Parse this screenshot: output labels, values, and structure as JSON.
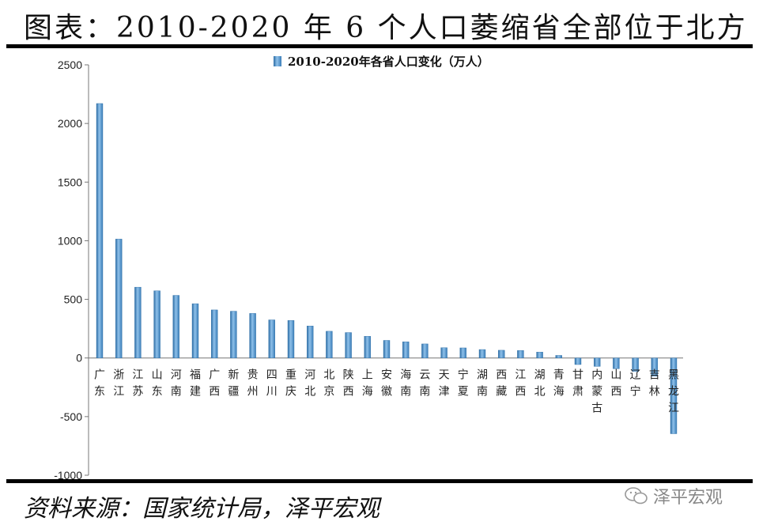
{
  "header": {
    "title": "图表：2010-2020 年 6 个人口萎缩省全部位于北方"
  },
  "footer": {
    "source": "资料来源：国家统计局，泽平宏观",
    "watermark": "泽平宏观"
  },
  "colors": {
    "bar": "#5b9bd5",
    "bar_dark": "#2e6ea6",
    "rule": "#000000"
  },
  "chart_data": {
    "type": "bar",
    "title": "",
    "xlabel": "",
    "ylabel": "",
    "ylim": [
      -1000,
      2500
    ],
    "yticks": [
      "2500",
      "2000",
      "1500",
      "1000",
      "500",
      "0",
      "-500",
      "-1000"
    ],
    "ytick_values": [
      2500,
      2000,
      1500,
      1000,
      500,
      0,
      -500,
      -1000
    ],
    "grid": false,
    "legend_position": "top-center",
    "series": [
      {
        "name": "2010-2020年各省人口变化（万人）",
        "values": [
          2170,
          1014,
          604,
          573,
          534,
          463,
          410,
          399,
          380,
          325,
          320,
          273,
          228,
          217,
          185,
          150,
          138,
          120,
          88,
          86,
          72,
          66,
          64,
          50,
          22,
          -56,
          -72,
          -92,
          -115,
          -155,
          -646
        ]
      }
    ],
    "categories": [
      "广东",
      "浙江",
      "江苏",
      "山东",
      "河南",
      "福建",
      "广西",
      "新疆",
      "贵州",
      "四川",
      "重庆",
      "河北",
      "北京",
      "陕西",
      "上海",
      "安徽",
      "海南",
      "云南",
      "天津",
      "宁夏",
      "湖南",
      "西藏",
      "江西",
      "湖北",
      "青海",
      "甘肃",
      "内蒙古",
      "山西",
      "辽宁",
      "吉林",
      "黑龙江"
    ]
  }
}
